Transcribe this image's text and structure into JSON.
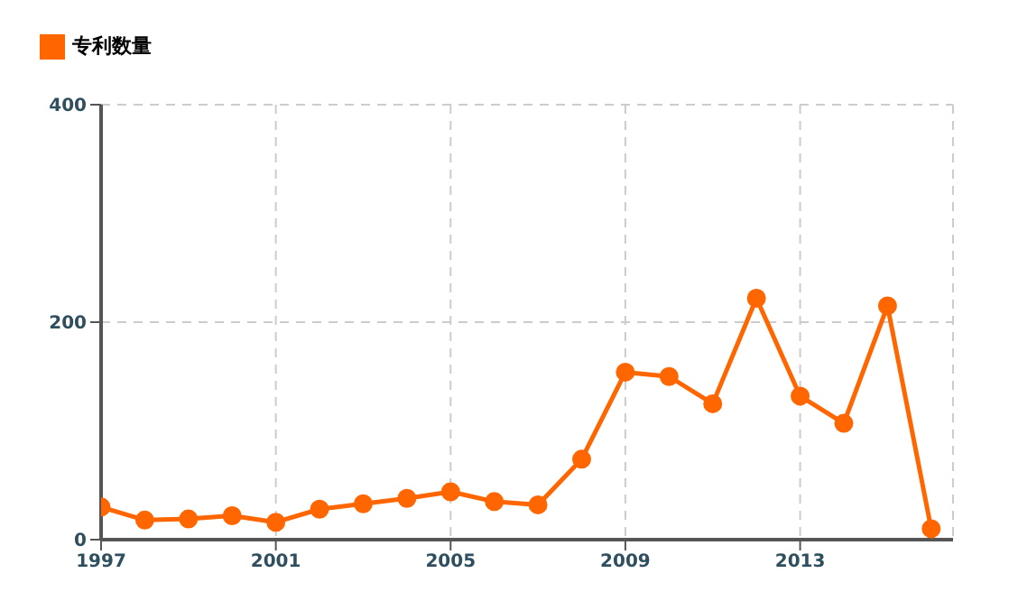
{
  "chart_data": {
    "type": "line",
    "x": [
      1997,
      1998,
      1999,
      2000,
      2001,
      2002,
      2003,
      2004,
      2005,
      2006,
      2007,
      2008,
      2009,
      2010,
      2011,
      2012,
      2013,
      2014,
      2015,
      2016
    ],
    "series": [
      {
        "name": "专利数量",
        "color": "#ff6600",
        "values": [
          30,
          18,
          19,
          22,
          16,
          28,
          33,
          38,
          44,
          35,
          32,
          74,
          154,
          150,
          125,
          222,
          132,
          107,
          215,
          10
        ]
      }
    ],
    "xlim": [
      1997,
      2016.5
    ],
    "xticks": [
      1997,
      2001,
      2005,
      2009,
      2013
    ],
    "ylim": [
      0,
      400
    ],
    "yticks": [
      0,
      200,
      400
    ],
    "grid": true,
    "legend": "top left",
    "marker": "circle",
    "line_style": "solid"
  }
}
